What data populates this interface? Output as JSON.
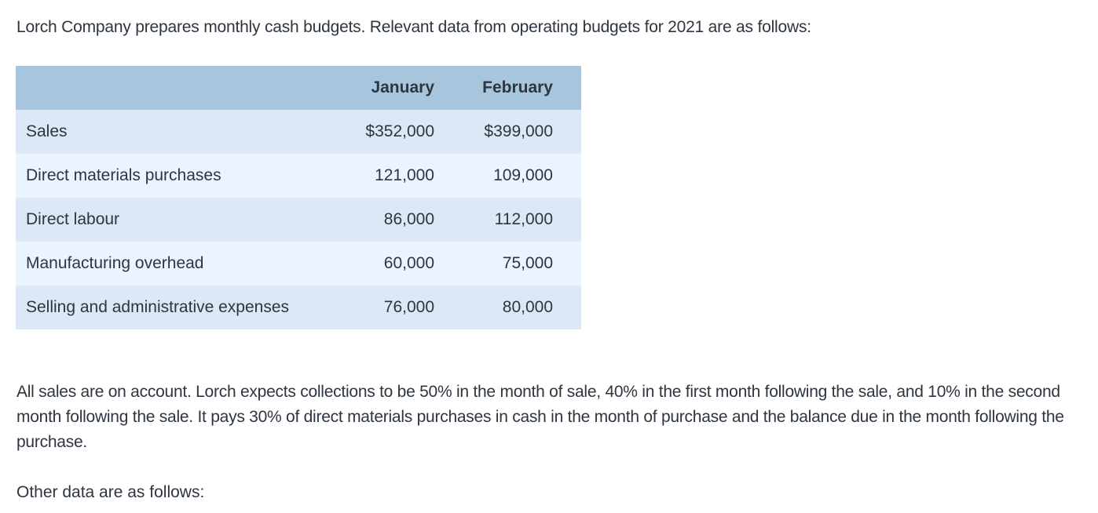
{
  "intro": "Lorch Company prepares monthly cash budgets. Relevant data from operating budgets for 2021 are as follows:",
  "table": {
    "headers": [
      "",
      "January",
      "February"
    ],
    "rows": [
      {
        "label": "Sales",
        "january": "$352,000",
        "february": "$399,000"
      },
      {
        "label": "Direct materials purchases",
        "january": "121,000",
        "february": "109,000"
      },
      {
        "label": "Direct labour",
        "january": "86,000",
        "february": "112,000"
      },
      {
        "label": "Manufacturing overhead",
        "january": "60,000",
        "february": "75,000"
      },
      {
        "label": "Selling and administrative expenses",
        "january": "76,000",
        "february": "80,000"
      }
    ]
  },
  "paragraph": "All sales are on account. Lorch expects collections to be 50% in the month of sale, 40% in the first month following the sale, and 10% in the second month following the sale. It pays 30% of direct materials purchases in cash in the month of purchase and the balance due in the month following the purchase.",
  "other_data_label": "Other data are as follows:",
  "colors": {
    "header_bg": "#a7c6dd",
    "row_odd_bg": "#dce8f6",
    "row_even_bg": "#ebf3fe",
    "text": "#2d3540"
  }
}
